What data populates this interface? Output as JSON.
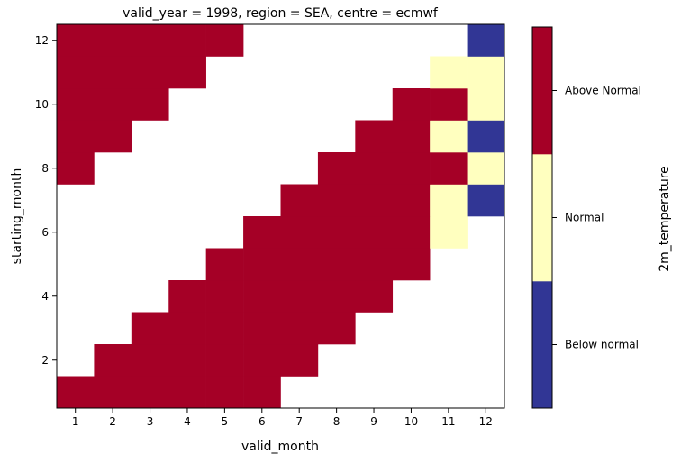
{
  "chart_data": {
    "type": "heatmap",
    "title": "valid_year = 1998, region = SEA, centre = ecmwf",
    "xlabel": "valid_month",
    "ylabel": "starting_month",
    "x": [
      1,
      2,
      3,
      4,
      5,
      6,
      7,
      8,
      9,
      10,
      11,
      12
    ],
    "y": [
      1,
      2,
      3,
      4,
      5,
      6,
      7,
      8,
      9,
      10,
      11,
      12
    ],
    "xlim": [
      0.5,
      12.5
    ],
    "ylim": [
      0.5,
      12.5
    ],
    "xticks": [
      1,
      2,
      3,
      4,
      5,
      6,
      7,
      8,
      9,
      10,
      11,
      12
    ],
    "yticks": [
      2,
      4,
      6,
      8,
      10,
      12
    ],
    "categories_note_codes": "0 = Below normal, 1 = Normal, 2 = Above Normal, null = no data",
    "z": [
      [
        2,
        2,
        2,
        2,
        2,
        2,
        null,
        null,
        null,
        null,
        null,
        null
      ],
      [
        null,
        2,
        2,
        2,
        2,
        2,
        2,
        null,
        null,
        null,
        null,
        null
      ],
      [
        null,
        null,
        2,
        2,
        2,
        2,
        2,
        2,
        null,
        null,
        null,
        null
      ],
      [
        null,
        null,
        null,
        2,
        2,
        2,
        2,
        2,
        2,
        null,
        null,
        null
      ],
      [
        null,
        null,
        null,
        null,
        2,
        2,
        2,
        2,
        2,
        2,
        null,
        null
      ],
      [
        null,
        null,
        null,
        null,
        null,
        2,
        2,
        2,
        2,
        2,
        1,
        null
      ],
      [
        null,
        null,
        null,
        null,
        null,
        null,
        2,
        2,
        2,
        2,
        1,
        0
      ],
      [
        2,
        null,
        null,
        null,
        null,
        null,
        null,
        2,
        2,
        2,
        2,
        1
      ],
      [
        2,
        2,
        null,
        null,
        null,
        null,
        null,
        null,
        2,
        2,
        1,
        0
      ],
      [
        2,
        2,
        2,
        null,
        null,
        null,
        null,
        null,
        null,
        2,
        2,
        1
      ],
      [
        2,
        2,
        2,
        2,
        null,
        null,
        null,
        null,
        null,
        null,
        1,
        1
      ],
      [
        2,
        2,
        2,
        2,
        2,
        null,
        null,
        null,
        null,
        null,
        null,
        0
      ]
    ],
    "colorbar": {
      "label": "2m_temperature",
      "categories": [
        "Below normal",
        "Normal",
        "Above Normal"
      ],
      "colors": [
        "#313695",
        "#ffffbf",
        "#a50026"
      ]
    },
    "grid": false,
    "legend": "colorbar-right"
  }
}
